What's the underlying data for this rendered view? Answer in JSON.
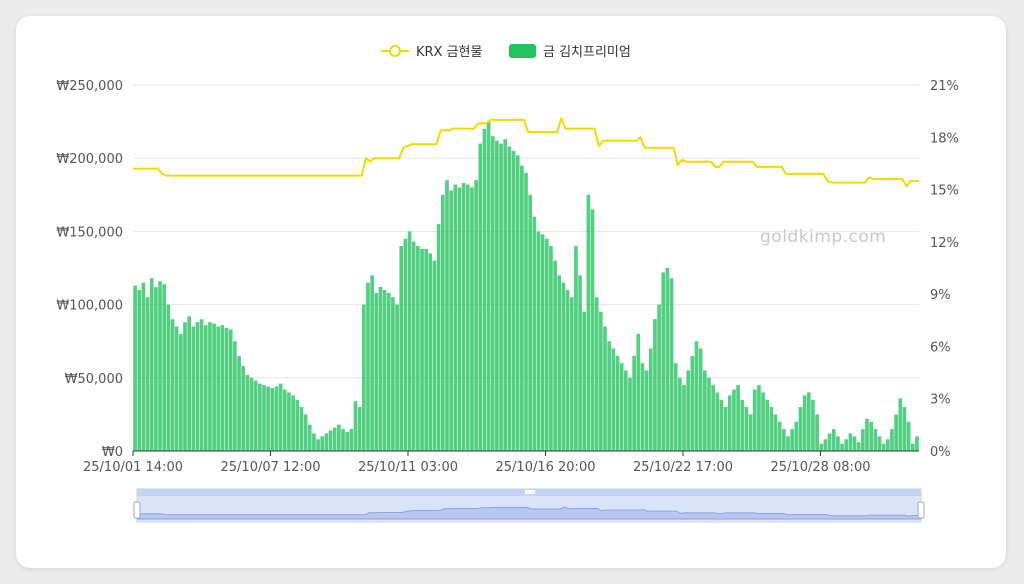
{
  "watermark": "goldkimp.com",
  "chart_data": {
    "type": "bar+line",
    "series": [
      {
        "name": "KRX 금현물",
        "type": "line",
        "axis": "right",
        "color": "#f5d800"
      },
      {
        "name": "금 김치프리미엄",
        "type": "bar",
        "axis": "left",
        "color": "#21c25e"
      }
    ],
    "x_tick_labels": [
      "25/10/01 14:00",
      "25/10/07 12:00",
      "25/10/11 03:00",
      "25/10/16 20:00",
      "25/10/22 17:00",
      "25/10/28 08:00"
    ],
    "y_left_tick_labels": [
      "₩0",
      "₩50,000",
      "₩100,000",
      "₩150,000",
      "₩200,000",
      "₩250,000"
    ],
    "y_right_tick_labels": [
      "0%",
      "3%",
      "6%",
      "9%",
      "12%",
      "15%",
      "18%",
      "21%"
    ],
    "ylim_left": [
      0,
      250000
    ],
    "ylim_right": [
      0,
      21
    ],
    "grid": true,
    "legend": "top-center",
    "bar_values": [
      113000,
      110000,
      115000,
      105000,
      118000,
      112000,
      116000,
      114000,
      100000,
      90000,
      85000,
      80000,
      88000,
      92000,
      85000,
      88000,
      90000,
      86000,
      88000,
      87000,
      85000,
      86000,
      84000,
      83000,
      75000,
      65000,
      58000,
      52000,
      50000,
      48000,
      46000,
      45000,
      44000,
      43000,
      44000,
      46000,
      42000,
      40000,
      38000,
      35000,
      30000,
      25000,
      18000,
      12000,
      8000,
      10000,
      12000,
      14000,
      16000,
      18000,
      15000,
      13000,
      15000,
      34000,
      30000,
      100000,
      115000,
      120000,
      108000,
      112000,
      110000,
      108000,
      105000,
      100000,
      140000,
      145000,
      150000,
      143000,
      140000,
      138000,
      138000,
      135000,
      130000,
      155000,
      175000,
      185000,
      178000,
      182000,
      180000,
      183000,
      182000,
      180000,
      185000,
      210000,
      220000,
      225000,
      215000,
      212000,
      210000,
      213000,
      208000,
      205000,
      202000,
      195000,
      190000,
      175000,
      160000,
      150000,
      148000,
      145000,
      140000,
      130000,
      120000,
      115000,
      110000,
      105000,
      140000,
      120000,
      95000,
      175000,
      165000,
      105000,
      95000,
      85000,
      75000,
      70000,
      65000,
      60000,
      55000,
      50000,
      65000,
      80000,
      60000,
      55000,
      70000,
      90000,
      100000,
      122000,
      125000,
      118000,
      60000,
      50000,
      45000,
      55000,
      65000,
      75000,
      70000,
      55000,
      50000,
      45000,
      40000,
      35000,
      30000,
      38000,
      42000,
      45000,
      35000,
      30000,
      25000,
      42000,
      45000,
      40000,
      35000,
      30000,
      25000,
      20000,
      15000,
      10000,
      15000,
      20000,
      30000,
      38000,
      40000,
      35000,
      25000,
      5000,
      8000,
      12000,
      15000,
      10000,
      5000,
      8000,
      12000,
      10000,
      6000,
      15000,
      22000,
      20000,
      15000,
      10000,
      5000,
      8000,
      15000,
      25000,
      36000,
      30000,
      20000,
      5000,
      10000
    ],
    "line_values": [
      16.2,
      16.2,
      16.2,
      16.2,
      16.2,
      16.2,
      16.2,
      15.9,
      15.8,
      15.8,
      15.8,
      15.8,
      15.8,
      15.8,
      15.8,
      15.8,
      15.8,
      15.8,
      15.8,
      15.8,
      15.8,
      15.8,
      15.8,
      15.8,
      15.8,
      15.8,
      15.8,
      15.8,
      15.8,
      15.8,
      15.8,
      15.8,
      15.8,
      15.8,
      15.8,
      15.8,
      15.8,
      15.8,
      15.8,
      15.8,
      15.8,
      15.8,
      15.8,
      15.8,
      15.8,
      15.8,
      15.8,
      15.8,
      15.8,
      15.8,
      15.8,
      15.8,
      15.8,
      15.8,
      15.8,
      15.8,
      16.8,
      16.6,
      16.8,
      16.8,
      16.8,
      16.8,
      16.8,
      16.8,
      16.8,
      17.4,
      17.5,
      17.6,
      17.6,
      17.6,
      17.6,
      17.6,
      17.6,
      17.6,
      18.4,
      18.4,
      18.4,
      18.5,
      18.5,
      18.5,
      18.5,
      18.5,
      18.5,
      18.8,
      18.8,
      18.8,
      19.0,
      19.0,
      19.0,
      19.0,
      19.0,
      19.0,
      19.0,
      19.0,
      19.0,
      18.3,
      18.3,
      18.3,
      18.3,
      18.3,
      18.3,
      18.3,
      18.3,
      19.1,
      18.5,
      18.5,
      18.5,
      18.5,
      18.5,
      18.5,
      18.5,
      18.5,
      17.5,
      17.8,
      17.8,
      17.8,
      17.8,
      17.8,
      17.8,
      17.8,
      17.8,
      17.8,
      18.0,
      17.4,
      17.4,
      17.4,
      17.4,
      17.4,
      17.4,
      17.4,
      17.4,
      16.4,
      16.7,
      16.6,
      16.6,
      16.6,
      16.6,
      16.6,
      16.6,
      16.6,
      16.3,
      16.3,
      16.6,
      16.6,
      16.6,
      16.6,
      16.6,
      16.6,
      16.6,
      16.6,
      16.3,
      16.3,
      16.3,
      16.3,
      16.3,
      16.3,
      16.3,
      15.9,
      15.9,
      15.9,
      15.9,
      15.9,
      15.9,
      15.9,
      15.9,
      15.9,
      15.9,
      15.5,
      15.4,
      15.4,
      15.4,
      15.4,
      15.4,
      15.4,
      15.4,
      15.4,
      15.4,
      15.7,
      15.6,
      15.6,
      15.6,
      15.6,
      15.6,
      15.6,
      15.6,
      15.6,
      15.2,
      15.5,
      15.5,
      15.5
    ]
  }
}
